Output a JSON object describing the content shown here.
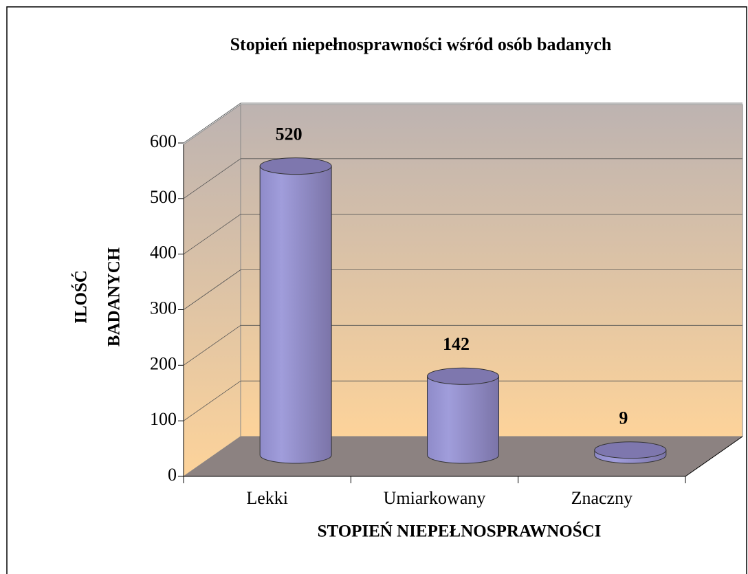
{
  "chart_data": {
    "type": "bar3d",
    "title": "Stopień niepełnosprawności wśród osób badanych",
    "x_label": "STOPIEŃ NIEPEŁNOSPRAWNOŚCI",
    "y_label": [
      "ILOŚĆ",
      "BADANYCH"
    ],
    "categories": [
      "Lekki",
      "Umiarkowany",
      "Znaczny"
    ],
    "values": [
      520,
      142,
      9
    ],
    "color": "#9591cf",
    "ylim": [
      0,
      600
    ],
    "yticks": [
      0,
      100,
      200,
      300,
      400,
      500,
      600
    ],
    "grid": true
  }
}
